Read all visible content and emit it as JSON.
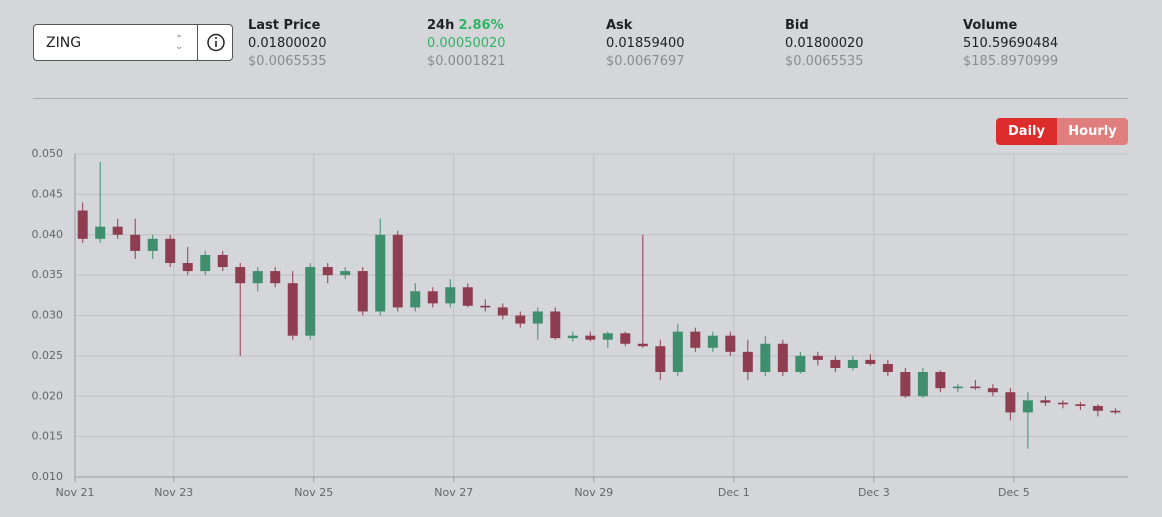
{
  "selector": {
    "value": "ZING"
  },
  "stats": [
    {
      "label": "Last Price",
      "value": "0.01800020",
      "usd": "$0.0065535"
    },
    {
      "label": "24h",
      "change": "2.86%",
      "value": "0.00050020",
      "usd": "$0.0001821"
    },
    {
      "label": "Ask",
      "value": "0.01859400",
      "usd": "$0.0067697"
    },
    {
      "label": "Bid",
      "value": "0.01800020",
      "usd": "$0.0065535"
    },
    {
      "label": "Volume",
      "value": "510.59690484",
      "usd": "$185.8970999"
    }
  ],
  "buttons": [
    "Daily",
    "Hourly"
  ],
  "chart_data": {
    "type": "candlestick",
    "grid": true,
    "up_color": "#3f8f6e",
    "down_color": "#8f3d50",
    "xlim": [
      0.59,
      15.63
    ],
    "xticks": [
      {
        "value": 0.59,
        "label": "Nov 21"
      },
      {
        "value": 2,
        "label": "Nov 23"
      },
      {
        "value": 4,
        "label": "Nov 25"
      },
      {
        "value": 6,
        "label": "Nov 27"
      },
      {
        "value": 8,
        "label": "Nov 29"
      },
      {
        "value": 10,
        "label": "Dec 1"
      },
      {
        "value": 12,
        "label": "Dec 3"
      },
      {
        "value": 14,
        "label": "Dec 5"
      }
    ],
    "ylim": [
      0.01,
      0.05
    ],
    "yticks": [
      {
        "value": 0.01,
        "label": "0.010"
      },
      0.015,
      {
        "value": 0.02,
        "label": "0.020"
      },
      0.025,
      {
        "value": 0.03,
        "label": "0.030"
      },
      0.035,
      {
        "value": 0.04,
        "label": "0.040"
      },
      0.045,
      {
        "value": 0.05,
        "label": "0.050"
      }
    ],
    "x": [
      0.7,
      0.95,
      1.2,
      1.45,
      1.7,
      1.95,
      2.2,
      2.45,
      2.7,
      2.95,
      3.2,
      3.45,
      3.7,
      3.95,
      4.2,
      4.45,
      4.7,
      4.95,
      5.2,
      5.45,
      5.7,
      5.95,
      6.2,
      6.45,
      6.7,
      6.95,
      7.2,
      7.45,
      7.7,
      7.95,
      8.2,
      8.45,
      8.7,
      8.95,
      9.2,
      9.45,
      9.7,
      9.95,
      10.2,
      10.45,
      10.7,
      10.95,
      11.2,
      11.45,
      11.7,
      11.95,
      12.2,
      12.45,
      12.7,
      12.95,
      13.2,
      13.45,
      13.7,
      13.95,
      14.2,
      14.45,
      14.7,
      14.95,
      15.2,
      15.45
    ],
    "open": [
      0.043,
      0.0395,
      0.041,
      0.04,
      0.038,
      0.0395,
      0.0365,
      0.0355,
      0.0375,
      0.036,
      0.034,
      0.0355,
      0.034,
      0.0275,
      0.036,
      0.035,
      0.0355,
      0.0305,
      0.04,
      0.031,
      0.033,
      0.0315,
      0.0335,
      0.0312,
      0.031,
      0.03,
      0.029,
      0.0305,
      0.0272,
      0.0275,
      0.027,
      0.0278,
      0.0265,
      0.0262,
      0.023,
      0.028,
      0.026,
      0.0275,
      0.0255,
      0.023,
      0.0265,
      0.023,
      0.025,
      0.0245,
      0.0235,
      0.0245,
      0.024,
      0.023,
      0.02,
      0.023,
      0.021,
      0.0212,
      0.021,
      0.0205,
      0.018,
      0.0195,
      0.0192,
      0.019,
      0.0188,
      0.0182
    ],
    "high": [
      0.044,
      0.049,
      0.042,
      0.042,
      0.04,
      0.04,
      0.0385,
      0.038,
      0.038,
      0.0365,
      0.036,
      0.036,
      0.0355,
      0.0365,
      0.0365,
      0.036,
      0.036,
      0.042,
      0.0405,
      0.034,
      0.0335,
      0.0345,
      0.034,
      0.032,
      0.0315,
      0.0305,
      0.031,
      0.031,
      0.028,
      0.028,
      0.028,
      0.028,
      0.04,
      0.027,
      0.029,
      0.0285,
      0.028,
      0.028,
      0.027,
      0.0275,
      0.027,
      0.0255,
      0.0255,
      0.025,
      0.025,
      0.0252,
      0.0245,
      0.0235,
      0.0235,
      0.0232,
      0.0215,
      0.022,
      0.0215,
      0.021,
      0.0205,
      0.02,
      0.0195,
      0.0193,
      0.019,
      0.0185
    ],
    "low": [
      0.039,
      0.039,
      0.0395,
      0.037,
      0.037,
      0.036,
      0.035,
      0.035,
      0.0355,
      0.025,
      0.033,
      0.0335,
      0.027,
      0.027,
      0.034,
      0.0345,
      0.03,
      0.03,
      0.0305,
      0.0305,
      0.031,
      0.031,
      0.031,
      0.0305,
      0.0295,
      0.0285,
      0.027,
      0.027,
      0.0268,
      0.0268,
      0.026,
      0.0262,
      0.026,
      0.022,
      0.0225,
      0.0255,
      0.0255,
      0.025,
      0.022,
      0.0225,
      0.0225,
      0.0228,
      0.0238,
      0.023,
      0.0232,
      0.0238,
      0.0225,
      0.0198,
      0.0198,
      0.0205,
      0.0205,
      0.0208,
      0.02,
      0.017,
      0.0135,
      0.0188,
      0.0185,
      0.0183,
      0.0175,
      0.0178
    ],
    "close": [
      0.0395,
      0.041,
      0.04,
      0.038,
      0.0395,
      0.0365,
      0.0355,
      0.0375,
      0.036,
      0.034,
      0.0355,
      0.034,
      0.0275,
      0.036,
      0.035,
      0.0355,
      0.0305,
      0.04,
      0.031,
      0.033,
      0.0315,
      0.0335,
      0.0312,
      0.031,
      0.03,
      0.029,
      0.0305,
      0.0272,
      0.0275,
      0.027,
      0.0278,
      0.0265,
      0.0262,
      0.023,
      0.028,
      0.026,
      0.0275,
      0.0255,
      0.023,
      0.0265,
      0.023,
      0.025,
      0.0245,
      0.0235,
      0.0245,
      0.024,
      0.023,
      0.02,
      0.023,
      0.021,
      0.0212,
      0.021,
      0.0205,
      0.018,
      0.0195,
      0.0192,
      0.019,
      0.0188,
      0.0182,
      0.018
    ]
  }
}
